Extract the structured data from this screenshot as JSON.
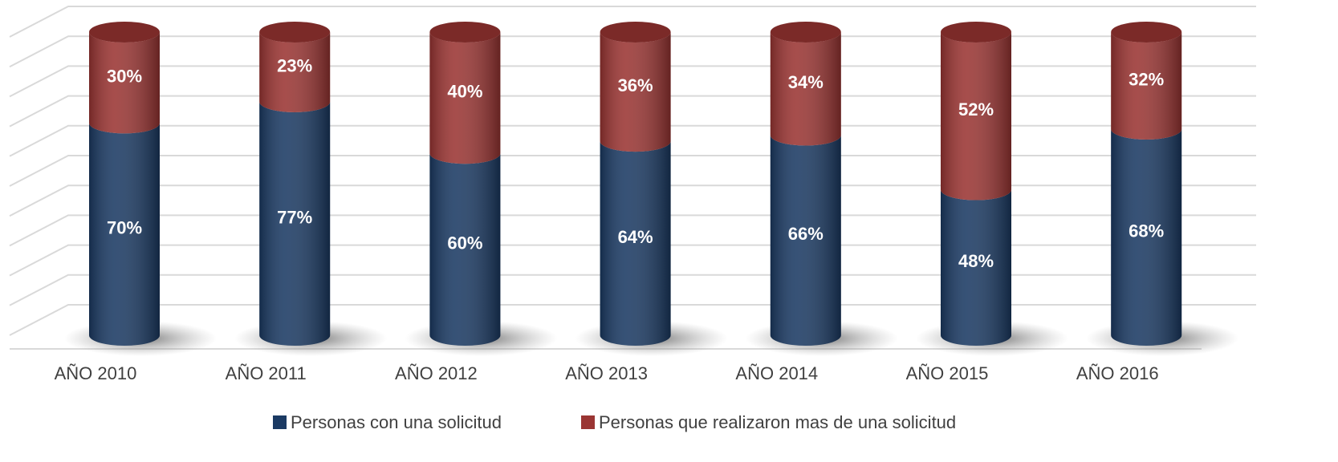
{
  "chart_data": {
    "type": "bar",
    "stacked": true,
    "categories": [
      "AÑO 2010",
      "AÑO 2011",
      "AÑO 2012",
      "AÑO 2013",
      "AÑO 2014",
      "AÑO 2015",
      "AÑO 2016"
    ],
    "series": [
      {
        "name": "Personas con una solicitud",
        "color": "#1b3a63",
        "values": [
          70,
          77,
          60,
          64,
          66,
          48,
          68
        ],
        "value_labels": [
          "70%",
          "77%",
          "60%",
          "64%",
          "66%",
          "48%",
          "68%"
        ]
      },
      {
        "name": "Personas que realizaron mas de una solicitud",
        "color": "#9a3533",
        "values": [
          30,
          23,
          40,
          36,
          34,
          52,
          32
        ],
        "value_labels": [
          "30%",
          "23%",
          "40%",
          "36%",
          "34%",
          "52%",
          "32%"
        ]
      }
    ],
    "ylim": [
      0,
      100
    ],
    "yticks": [
      0,
      10,
      20,
      30,
      40,
      50,
      60,
      70,
      80,
      90,
      100
    ],
    "grid": true,
    "legend": "bottom"
  }
}
